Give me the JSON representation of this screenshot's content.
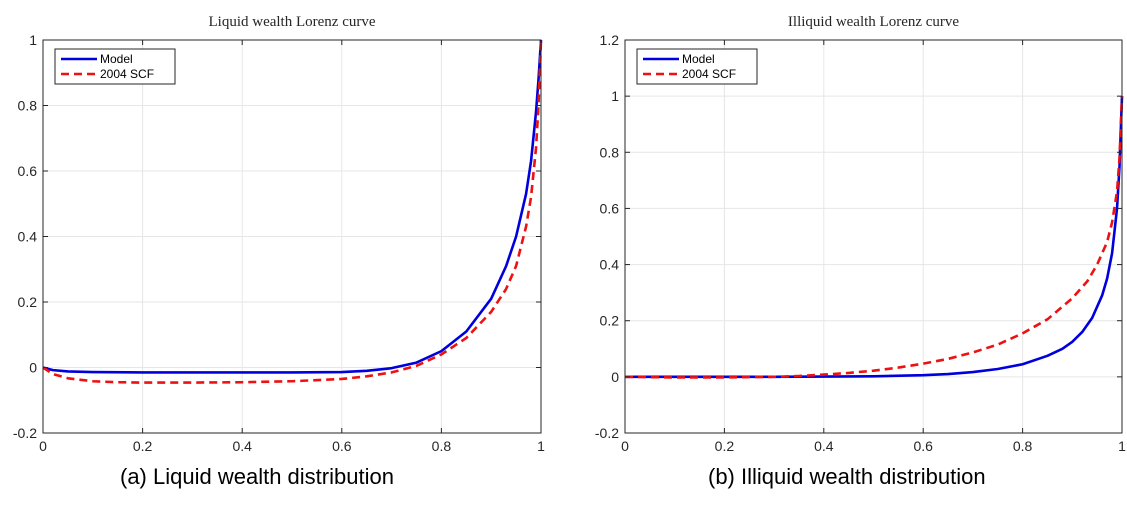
{
  "chart_data": [
    {
      "type": "line",
      "title": "Liquid wealth Lorenz curve",
      "caption": "(a)  Liquid wealth distribution",
      "xlim": [
        0,
        1
      ],
      "ylim": [
        -0.2,
        1
      ],
      "xticks": [
        0,
        0.2,
        0.4,
        0.6,
        0.8,
        1
      ],
      "xtick_labels": [
        "0",
        "0.2",
        "0.4",
        "0.6",
        "0.8",
        "1"
      ],
      "yticks": [
        -0.2,
        0,
        0.2,
        0.4,
        0.6,
        0.8,
        1
      ],
      "ytick_labels": [
        "-0.2",
        "0",
        "0.2",
        "0.4",
        "0.6",
        "0.8",
        "1"
      ],
      "grid": true,
      "legend_position": "top-left",
      "series": [
        {
          "name": "Model",
          "color": "#0000dd",
          "style": "solid",
          "x": [
            0,
            0.02,
            0.05,
            0.1,
            0.2,
            0.3,
            0.4,
            0.5,
            0.6,
            0.65,
            0.7,
            0.75,
            0.8,
            0.85,
            0.9,
            0.93,
            0.95,
            0.97,
            0.98,
            0.99,
            0.995,
            1
          ],
          "y": [
            0,
            -0.008,
            -0.012,
            -0.014,
            -0.015,
            -0.015,
            -0.015,
            -0.015,
            -0.014,
            -0.01,
            -0.002,
            0.015,
            0.05,
            0.11,
            0.21,
            0.31,
            0.4,
            0.53,
            0.63,
            0.78,
            0.88,
            1
          ]
        },
        {
          "name": "2004 SCF",
          "color": "#ee1111",
          "style": "dashed",
          "x": [
            0,
            0.02,
            0.05,
            0.1,
            0.15,
            0.2,
            0.3,
            0.4,
            0.5,
            0.6,
            0.65,
            0.7,
            0.75,
            0.8,
            0.85,
            0.9,
            0.93,
            0.95,
            0.97,
            0.98,
            0.99,
            0.995,
            1
          ],
          "y": [
            0,
            -0.02,
            -0.033,
            -0.042,
            -0.045,
            -0.046,
            -0.046,
            -0.045,
            -0.042,
            -0.035,
            -0.027,
            -0.015,
            0.005,
            0.04,
            0.09,
            0.17,
            0.24,
            0.31,
            0.43,
            0.52,
            0.67,
            0.8,
            1
          ]
        }
      ]
    },
    {
      "type": "line",
      "title": "Illiquid wealth Lorenz curve",
      "caption": "(b)  Illiquid wealth distribution",
      "xlim": [
        0,
        1
      ],
      "ylim": [
        -0.2,
        1.2
      ],
      "xticks": [
        0,
        0.2,
        0.4,
        0.6,
        0.8,
        1
      ],
      "xtick_labels": [
        "0",
        "0.2",
        "0.4",
        "0.6",
        "0.8",
        "1"
      ],
      "yticks": [
        -0.2,
        0,
        0.2,
        0.4,
        0.6,
        0.8,
        1,
        1.2
      ],
      "ytick_labels": [
        "-0.2",
        "0",
        "0.2",
        "0.4",
        "0.6",
        "0.8",
        "1",
        "1.2"
      ],
      "grid": true,
      "legend_position": "top-left",
      "series": [
        {
          "name": "Model",
          "color": "#0000dd",
          "style": "solid",
          "x": [
            0,
            0.1,
            0.2,
            0.3,
            0.4,
            0.5,
            0.6,
            0.65,
            0.7,
            0.75,
            0.8,
            0.85,
            0.88,
            0.9,
            0.92,
            0.94,
            0.96,
            0.97,
            0.98,
            0.99,
            0.995,
            1
          ],
          "y": [
            0,
            0,
            0,
            0,
            0.001,
            0.002,
            0.006,
            0.01,
            0.017,
            0.028,
            0.045,
            0.075,
            0.1,
            0.125,
            0.16,
            0.21,
            0.29,
            0.35,
            0.44,
            0.6,
            0.75,
            1
          ]
        },
        {
          "name": "2004 SCF",
          "color": "#ee1111",
          "style": "dashed",
          "x": [
            0,
            0.1,
            0.2,
            0.3,
            0.35,
            0.4,
            0.45,
            0.5,
            0.55,
            0.6,
            0.65,
            0.7,
            0.75,
            0.8,
            0.85,
            0.9,
            0.93,
            0.95,
            0.97,
            0.98,
            0.99,
            0.995,
            1
          ],
          "y": [
            0,
            -0.002,
            -0.002,
            0,
            0.003,
            0.008,
            0.014,
            0.022,
            0.033,
            0.047,
            0.064,
            0.087,
            0.115,
            0.155,
            0.205,
            0.28,
            0.34,
            0.4,
            0.48,
            0.55,
            0.66,
            0.78,
            1
          ]
        }
      ]
    }
  ]
}
